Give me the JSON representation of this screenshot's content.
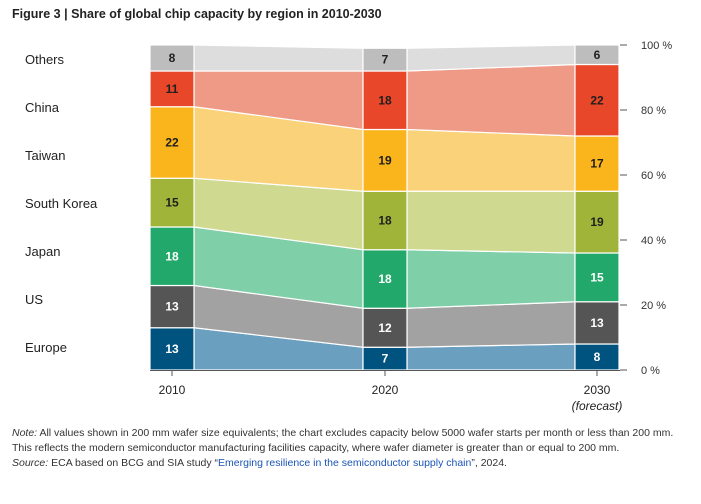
{
  "title": "Figure 3 | Share of global chip capacity by region in 2010-2030",
  "chart_data": {
    "type": "area",
    "title": "Figure 3 | Share of global chip capacity by region in 2010-2030",
    "x": [
      "2010",
      "2020",
      "2030"
    ],
    "x_sublabels": [
      "",
      "",
      "(forecast)"
    ],
    "ylim": [
      0,
      100
    ],
    "y_ticks": [
      "0 %",
      "20 %",
      "40 %",
      "60 %",
      "80 %",
      "100 %"
    ],
    "stacked": true,
    "grid": false,
    "series": [
      {
        "name": "Europe",
        "values": [
          13,
          7,
          8
        ],
        "color": "#00527f",
        "fill": "#6a9fc0",
        "label_color": "#ffffff"
      },
      {
        "name": "US",
        "values": [
          13,
          12,
          13
        ],
        "color": "#555555",
        "fill": "#a2a2a2",
        "label_color": "#ffffff"
      },
      {
        "name": "Japan",
        "values": [
          18,
          18,
          15
        ],
        "color": "#23a86b",
        "fill": "#7fcfa8",
        "label_color": "#ffffff"
      },
      {
        "name": "South Korea",
        "values": [
          15,
          18,
          19
        ],
        "color": "#a0b43a",
        "fill": "#cfd98f",
        "label_color": "#1f1f1f"
      },
      {
        "name": "Taiwan",
        "values": [
          22,
          19,
          17
        ],
        "color": "#f9b51b",
        "fill": "#f9d27a",
        "label_color": "#1f1f1f"
      },
      {
        "name": "China",
        "values": [
          11,
          18,
          22
        ],
        "color": "#e8472a",
        "fill": "#ef9a86",
        "label_color": "#1f1f1f"
      },
      {
        "name": "Others",
        "values": [
          8,
          7,
          6
        ],
        "color": "#bdbdbd",
        "fill": "#dddddd",
        "label_color": "#1f1f1f"
      }
    ]
  },
  "notes": {
    "note_label": "Note:",
    "note_text": " All values shown in 200 mm wafer size equivalents; the chart excludes capacity below 5000 wafer starts per month or less than 200 mm. This reflects the modern semiconductor manufacturing facilities capacity, where wafer diameter is greater than or equal to 200 mm.",
    "source_label": "Source:",
    "source_text": " ECA based on BCG and SIA study “",
    "source_link": "Emerging resilience in the semiconductor supply chain",
    "source_suffix": "”, 2024."
  }
}
